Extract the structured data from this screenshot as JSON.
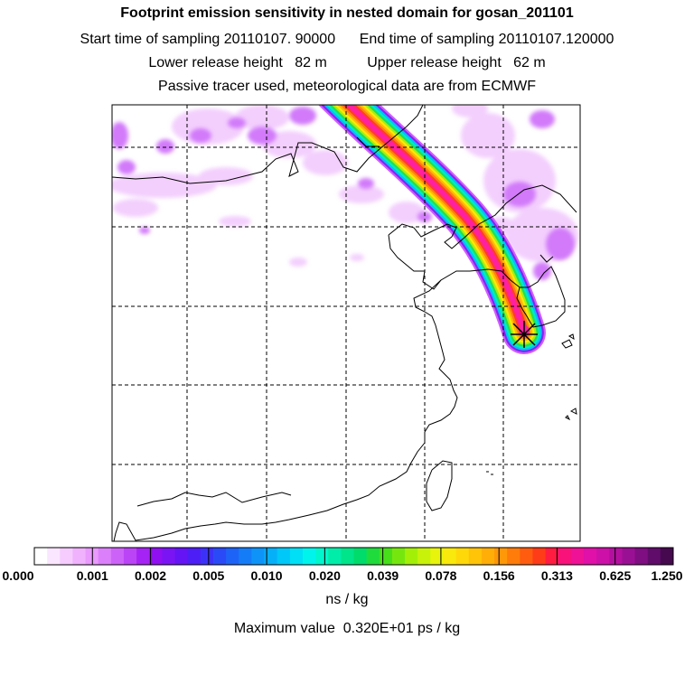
{
  "header": {
    "title": "Footprint emission sensitivity in nested domain for gosan_201101",
    "line2": "Start time of sampling 20110107. 90000      End time of sampling 20110107.120000",
    "line3": "Lower release height   82 m          Upper release height   62 m",
    "line4": "Passive tracer used, meteorological data are from ECMWF"
  },
  "colorbar": {
    "tick_labels": [
      "0.000",
      "0.001",
      "0.002",
      "0.005",
      "0.010",
      "0.020",
      "0.039",
      "0.078",
      "0.156",
      "0.313",
      "0.625",
      "1.250"
    ],
    "colors": [
      "#ffffff",
      "#fbe6ff",
      "#f6ccfe",
      "#f0b2fd",
      "#e99afc",
      "#dc7ffb",
      "#cd62f9",
      "#bb44f7",
      "#a623f5",
      "#9010f2",
      "#7a14f5",
      "#6414f5",
      "#4e1ef6",
      "#3c32f7",
      "#2b4af7",
      "#1e63f7",
      "#157cf8",
      "#0e94f8",
      "#06b0f8",
      "#00c8f8",
      "#00dff5",
      "#00f4ec",
      "#00f6cc",
      "#00eda9",
      "#00e48a",
      "#00dc6b",
      "#1fdb3c",
      "#47df1a",
      "#76e70e",
      "#a4ef08",
      "#c9f20a",
      "#e8f40c",
      "#fae90c",
      "#ffd80a",
      "#ffc408",
      "#ffae08",
      "#ff9808",
      "#ff7c0a",
      "#ff5c10",
      "#ff3c18",
      "#ff1c40",
      "#f8127a",
      "#ef1196",
      "#e010a8",
      "#cc10a8",
      "#b410a0",
      "#9a1094",
      "#7e0e82",
      "#600c6a",
      "#46094f"
    ],
    "unit": "ns / kg"
  },
  "footer": {
    "max_value": "Maximum value  0.320E+01 ps / kg"
  },
  "map": {
    "receptor": "gosan",
    "plume_colors": [
      "#ff20a0",
      "#ff3c28",
      "#ff8010",
      "#ffb808",
      "#ffe808",
      "#a6ee10",
      "#22dd55",
      "#00ecc0",
      "#00c0f8",
      "#8a20f4",
      "#cc60fa"
    ]
  }
}
